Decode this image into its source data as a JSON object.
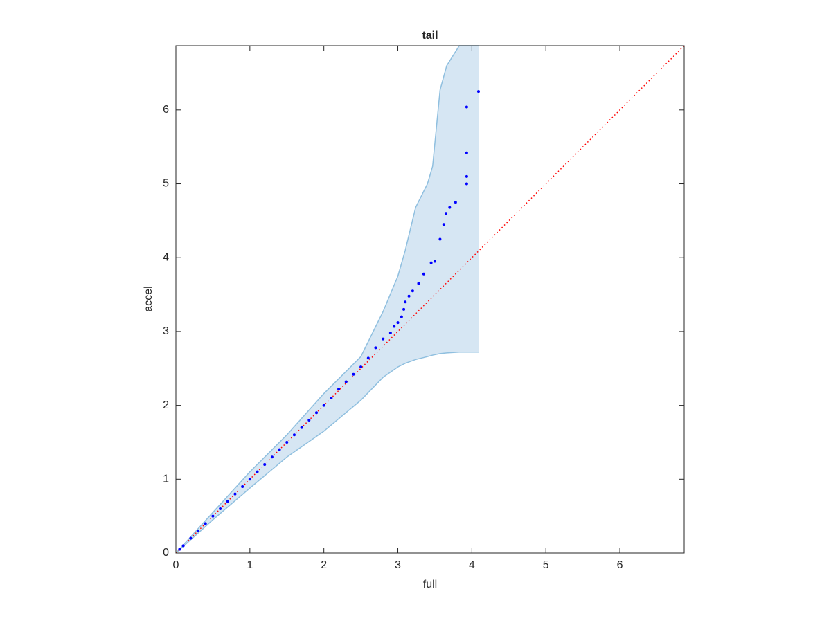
{
  "chart_data": {
    "type": "scatter",
    "title": "tail",
    "x_label": "full",
    "y_label": "accel",
    "xlim": [
      0,
      6.87
    ],
    "ylim": [
      0,
      6.87
    ],
    "xticks": [
      0,
      1,
      2,
      3,
      4,
      5,
      6
    ],
    "yticks": [
      0,
      1,
      2,
      3,
      4,
      5,
      6
    ],
    "band": {
      "color": "#d6e6f3",
      "edge_color": "#8fbfdf",
      "x": [
        0,
        0.5,
        1,
        1.5,
        2,
        2.5,
        2.8,
        3.0,
        3.1,
        3.24,
        3.4,
        3.47,
        3.57,
        3.66,
        3.83,
        4.09
      ],
      "upper": [
        0,
        0.55,
        1.1,
        1.6,
        2.16,
        2.66,
        3.27,
        3.75,
        4.1,
        4.68,
        5.0,
        5.24,
        6.27,
        6.6,
        6.87,
        6.87
      ],
      "lower": [
        0,
        0.45,
        0.88,
        1.3,
        1.65,
        2.07,
        2.38,
        2.52,
        2.57,
        2.62,
        2.66,
        2.68,
        2.7,
        2.71,
        2.72,
        2.72
      ]
    },
    "reference_line": {
      "color": "#ff0000",
      "x": [
        0,
        6.87
      ],
      "y": [
        0,
        6.87
      ]
    },
    "series": [
      {
        "color": "#0000ff",
        "x": [
          0.05,
          0.1,
          0.2,
          0.3,
          0.4,
          0.5,
          0.6,
          0.7,
          0.8,
          0.9,
          1.0,
          1.1,
          1.2,
          1.3,
          1.4,
          1.5,
          1.6,
          1.7,
          1.8,
          1.9,
          2.0,
          2.1,
          2.2,
          2.3,
          2.4,
          2.5,
          2.6,
          2.7,
          2.8,
          2.9,
          2.95,
          3.0,
          3.05,
          3.08,
          3.1,
          3.15,
          3.2,
          3.28,
          3.35,
          3.45,
          3.5,
          3.57,
          3.62,
          3.65,
          3.7,
          3.78,
          3.93,
          3.93,
          3.93,
          3.93,
          4.09
        ],
        "values": [
          0.05,
          0.1,
          0.2,
          0.3,
          0.4,
          0.5,
          0.6,
          0.7,
          0.8,
          0.9,
          1.0,
          1.1,
          1.2,
          1.3,
          1.4,
          1.5,
          1.6,
          1.7,
          1.8,
          1.9,
          2.0,
          2.1,
          2.22,
          2.32,
          2.42,
          2.52,
          2.64,
          2.78,
          2.9,
          2.98,
          3.07,
          3.12,
          3.2,
          3.3,
          3.4,
          3.48,
          3.55,
          3.65,
          3.78,
          3.93,
          3.95,
          4.25,
          4.45,
          4.6,
          4.68,
          4.75,
          5.0,
          5.1,
          5.42,
          6.04,
          6.25
        ]
      }
    ]
  }
}
